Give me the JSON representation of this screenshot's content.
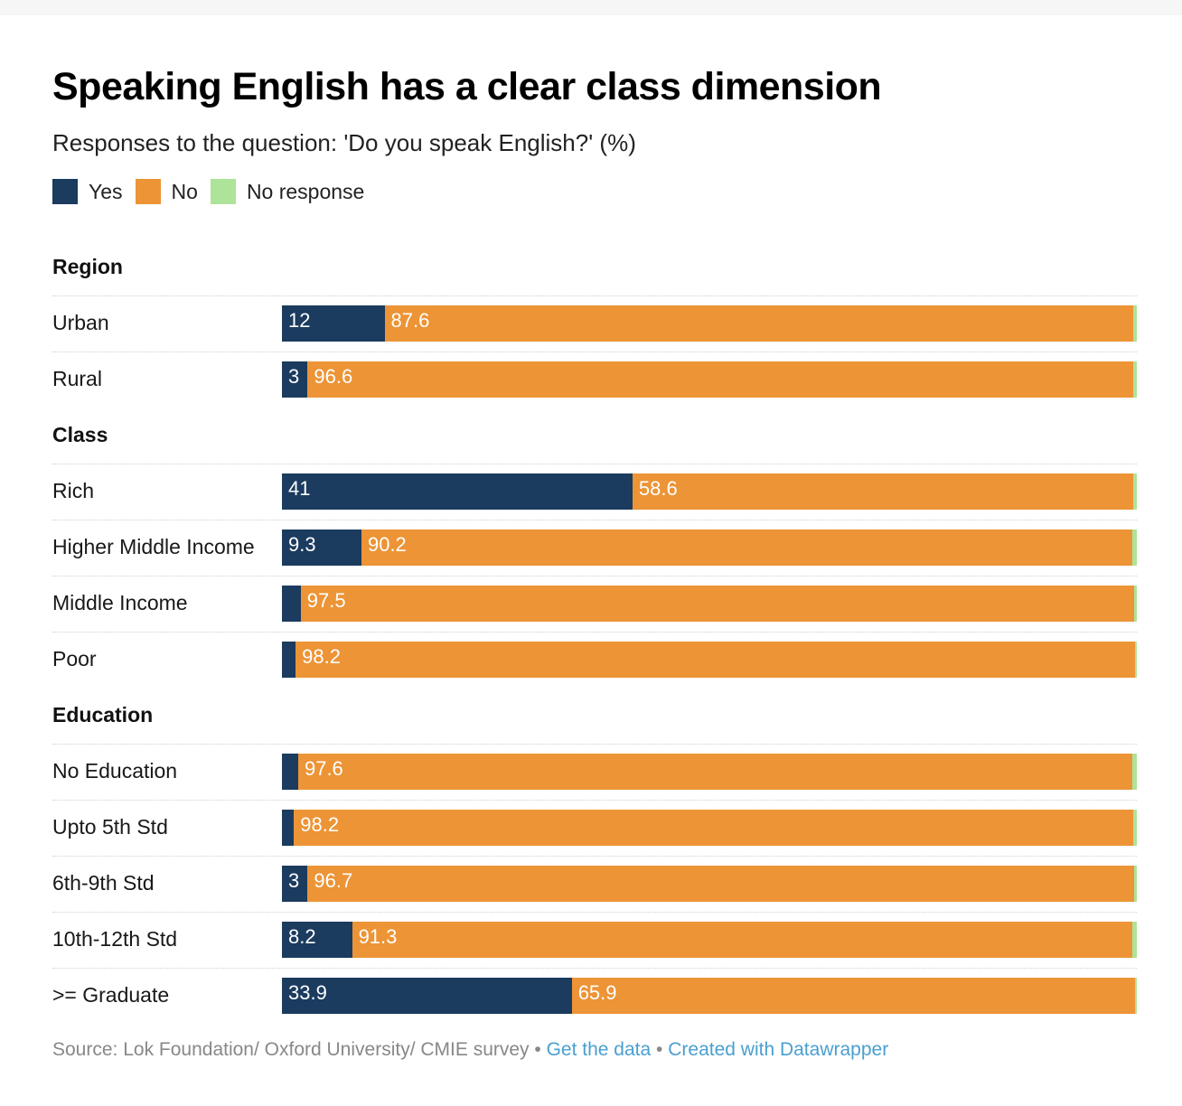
{
  "header": {
    "title": "Speaking English has a clear class dimension",
    "subtitle": "Responses to the question: 'Do you speak English?' (%)"
  },
  "legend": [
    {
      "label": "Yes",
      "color": "#1b3b5f"
    },
    {
      "label": "No",
      "color": "#ec9436"
    },
    {
      "label": "No response",
      "color": "#aee39a"
    }
  ],
  "chart_data": {
    "type": "bar",
    "orientation": "horizontal",
    "stacked": true,
    "title": "Speaking English has a clear class dimension",
    "subtitle": "Responses to the question: 'Do you speak English?' (%)",
    "xlim": [
      0,
      100
    ],
    "legend_position": "top-left",
    "series": [
      {
        "name": "Yes",
        "color": "#1b3b5f"
      },
      {
        "name": "No",
        "color": "#ec9436"
      },
      {
        "name": "No response",
        "color": "#aee39a"
      }
    ],
    "groups": [
      {
        "name": "Region",
        "rows": [
          {
            "label": "Urban",
            "yes": 12,
            "no": 87.6,
            "no_response": 0.4,
            "yes_label": "12",
            "no_label": "87.6"
          },
          {
            "label": "Rural",
            "yes": 3,
            "no": 96.6,
            "no_response": 0.4,
            "yes_label": "3",
            "no_label": "96.6"
          }
        ]
      },
      {
        "name": "Class",
        "rows": [
          {
            "label": "Rich",
            "yes": 41,
            "no": 58.6,
            "no_response": 0.4,
            "yes_label": "41",
            "no_label": "58.6"
          },
          {
            "label": "Higher Middle Income",
            "yes": 9.3,
            "no": 90.2,
            "no_response": 0.5,
            "yes_label": "9.3",
            "no_label": "90.2"
          },
          {
            "label": "Middle Income",
            "yes": 2.2,
            "no": 97.5,
            "no_response": 0.3,
            "yes_label": "",
            "no_label": "97.5"
          },
          {
            "label": "Poor",
            "yes": 1.6,
            "no": 98.2,
            "no_response": 0.2,
            "yes_label": "",
            "no_label": "98.2"
          }
        ]
      },
      {
        "name": "Education",
        "rows": [
          {
            "label": "No Education",
            "yes": 1.9,
            "no": 97.6,
            "no_response": 0.5,
            "yes_label": "",
            "no_label": "97.6"
          },
          {
            "label": "Upto 5th Std",
            "yes": 1.4,
            "no": 98.2,
            "no_response": 0.4,
            "yes_label": "",
            "no_label": "98.2"
          },
          {
            "label": "6th-9th Std",
            "yes": 3,
            "no": 96.7,
            "no_response": 0.3,
            "yes_label": "3",
            "no_label": "96.7"
          },
          {
            "label": "10th-12th Std",
            "yes": 8.2,
            "no": 91.3,
            "no_response": 0.5,
            "yes_label": "8.2",
            "no_label": "91.3"
          },
          {
            "label": ">= Graduate",
            "yes": 33.9,
            "no": 65.9,
            "no_response": 0.2,
            "yes_label": "33.9",
            "no_label": "65.9"
          }
        ]
      }
    ]
  },
  "footer": {
    "source": "Source: Lok Foundation/ Oxford University/ CMIE survey",
    "separator": "•",
    "get_data": "Get the data",
    "created_with": "Created with Datawrapper"
  }
}
